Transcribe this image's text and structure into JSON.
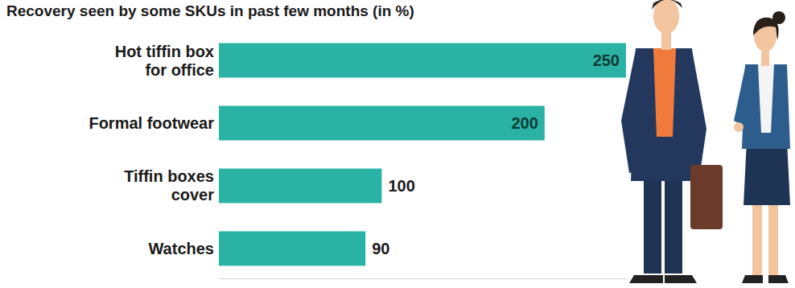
{
  "chart_data": {
    "type": "bar",
    "orientation": "horizontal",
    "title": "Recovery seen by some SKUs in past few months (in %)",
    "categories": [
      "Hot tiffin box for office",
      "Formal footwear",
      "Tiffin boxes cover",
      "Watches"
    ],
    "values": [
      250,
      200,
      100,
      90
    ],
    "color": "#2ab3a4",
    "xlim": [
      0,
      250
    ],
    "data_labels": true,
    "tick_labels": false
  }
}
